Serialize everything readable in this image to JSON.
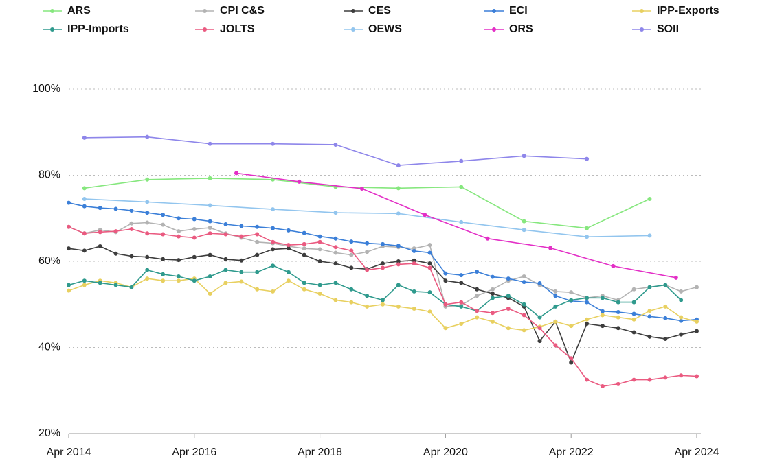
{
  "chart_data": {
    "type": "line",
    "legend": "top",
    "grid": true,
    "xlim": [
      2014.25,
      2024.25
    ],
    "xticks": [
      {
        "value": 2014.25,
        "label": "Apr 2014"
      },
      {
        "value": 2016.25,
        "label": "Apr 2016"
      },
      {
        "value": 2018.25,
        "label": "Apr 2018"
      },
      {
        "value": 2020.25,
        "label": "Apr 2020"
      },
      {
        "value": 2022.25,
        "label": "Apr 2022"
      },
      {
        "value": 2024.25,
        "label": "Apr 2024"
      }
    ],
    "ylim": [
      20,
      100
    ],
    "yticks": [
      {
        "value": 20,
        "label": "20%"
      },
      {
        "value": 40,
        "label": "40%"
      },
      {
        "value": 60,
        "label": "60%"
      },
      {
        "value": 80,
        "label": "80%"
      },
      {
        "value": 100,
        "label": "100%"
      }
    ],
    "series": [
      {
        "name": "ARS",
        "color": "#86e77e",
        "x": [
          2014.5,
          2015.5,
          2016.5,
          2017.5,
          2018.5,
          2019.5,
          2020.5,
          2021.5,
          2022.5,
          2023.5
        ],
        "values": [
          77,
          79,
          79.3,
          79,
          77.3,
          77,
          77.3,
          69.3,
          67.7,
          74.5
        ]
      },
      {
        "name": "CPI C&S",
        "color": "#b3b3b3",
        "x": [
          2014.25,
          2014.5,
          2014.75,
          2015,
          2015.25,
          2015.5,
          2015.75,
          2016,
          2016.25,
          2016.5,
          2016.75,
          2017,
          2017.25,
          2017.5,
          2017.75,
          2018,
          2018.25,
          2018.5,
          2018.75,
          2019,
          2019.25,
          2019.5,
          2019.75,
          2020,
          2020.25,
          2020.5,
          2020.75,
          2021,
          2021.25,
          2021.5,
          2021.75,
          2022,
          2022.25,
          2022.5,
          2022.75,
          2023,
          2023.25,
          2023.5,
          2023.75,
          2024,
          2024.25
        ],
        "values": [
          68.0,
          66.5,
          67.3,
          66.8,
          68.8,
          69.0,
          68.5,
          67.0,
          67.5,
          67.8,
          66.5,
          65.5,
          64.5,
          64.2,
          63.5,
          63.0,
          62.8,
          62.0,
          61.5,
          62.2,
          63.5,
          63.3,
          63.0,
          63.8,
          49.5,
          49.8,
          52.0,
          53.5,
          55.5,
          56.5,
          54.5,
          53.0,
          52.8,
          51.5,
          52.0,
          51.0,
          53.5,
          54.0,
          54.5,
          53.0,
          54.0
        ]
      },
      {
        "name": "CES",
        "color": "#3d3d3d",
        "x": [
          2014.25,
          2014.5,
          2014.75,
          2015,
          2015.25,
          2015.5,
          2015.75,
          2016,
          2016.25,
          2016.5,
          2016.75,
          2017,
          2017.25,
          2017.5,
          2017.75,
          2018,
          2018.25,
          2018.5,
          2018.75,
          2019,
          2019.25,
          2019.5,
          2019.75,
          2020,
          2020.25,
          2020.5,
          2020.75,
          2021,
          2021.25,
          2021.5,
          2021.75,
          2022,
          2022.25,
          2022.5,
          2022.75,
          2023,
          2023.25,
          2023.5,
          2023.75,
          2024,
          2024.25
        ],
        "values": [
          63.0,
          62.5,
          63.5,
          61.8,
          61.2,
          61.0,
          60.5,
          60.3,
          61.0,
          61.5,
          60.5,
          60.2,
          61.5,
          62.8,
          63.0,
          61.5,
          60.0,
          59.5,
          58.5,
          58.2,
          59.5,
          60.0,
          60.2,
          59.5,
          55.5,
          55.0,
          53.5,
          52.5,
          51.5,
          49.5,
          41.5,
          46.0,
          36.5,
          45.5,
          45.0,
          44.5,
          43.5,
          42.5,
          42.0,
          43.0,
          43.8
        ]
      },
      {
        "name": "ECI",
        "color": "#3b7fd8",
        "x": [
          2014.25,
          2014.5,
          2014.75,
          2015,
          2015.25,
          2015.5,
          2015.75,
          2016,
          2016.25,
          2016.5,
          2016.75,
          2017,
          2017.25,
          2017.5,
          2017.75,
          2018,
          2018.25,
          2018.5,
          2018.75,
          2019,
          2019.25,
          2019.5,
          2019.75,
          2020,
          2020.25,
          2020.5,
          2020.75,
          2021,
          2021.25,
          2021.5,
          2021.75,
          2022,
          2022.25,
          2022.5,
          2022.75,
          2023,
          2023.25,
          2023.5,
          2023.75,
          2024,
          2024.25
        ],
        "values": [
          73.6,
          72.8,
          72.4,
          72.2,
          71.8,
          71.3,
          70.8,
          70.0,
          69.8,
          69.3,
          68.6,
          68.2,
          68.0,
          67.7,
          67.2,
          66.6,
          65.8,
          65.3,
          64.6,
          64.2,
          64.0,
          63.6,
          62.4,
          62.0,
          57.2,
          56.8,
          57.6,
          56.4,
          56.0,
          55.2,
          54.9,
          52.0,
          50.8,
          50.5,
          48.4,
          48.2,
          47.8,
          47.2,
          46.8,
          46.2,
          46.5
        ]
      },
      {
        "name": "IPP-Exports",
        "color": "#e8d060",
        "x": [
          2014.25,
          2014.5,
          2014.75,
          2015,
          2015.25,
          2015.5,
          2015.75,
          2016,
          2016.25,
          2016.5,
          2016.75,
          2017,
          2017.25,
          2017.5,
          2017.75,
          2018,
          2018.25,
          2018.5,
          2018.75,
          2019,
          2019.25,
          2019.5,
          2019.75,
          2020,
          2020.25,
          2020.5,
          2020.75,
          2021,
          2021.25,
          2021.5,
          2021.75,
          2022,
          2022.25,
          2022.5,
          2022.75,
          2023,
          2023.25,
          2023.5,
          2023.75,
          2024,
          2024.25
        ],
        "values": [
          53.2,
          54.5,
          55.5,
          55.0,
          54.0,
          56.0,
          55.5,
          55.5,
          56.0,
          52.5,
          55.0,
          55.3,
          53.5,
          53.0,
          55.5,
          53.5,
          52.5,
          51.0,
          50.5,
          49.5,
          50.0,
          49.5,
          49.0,
          48.3,
          44.5,
          45.5,
          47.0,
          46.0,
          44.5,
          44.0,
          44.8,
          46.0,
          45.0,
          46.5,
          47.5,
          47.0,
          46.5,
          48.5,
          49.5,
          47.0,
          46.0
        ]
      },
      {
        "name": "IPP-Imports",
        "color": "#2f9a8d",
        "x": [
          2014.25,
          2014.5,
          2014.75,
          2015,
          2015.25,
          2015.5,
          2015.75,
          2016,
          2016.25,
          2016.5,
          2016.75,
          2017,
          2017.25,
          2017.5,
          2017.75,
          2018,
          2018.25,
          2018.5,
          2018.75,
          2019,
          2019.25,
          2019.5,
          2019.75,
          2020,
          2020.25,
          2020.5,
          2020.75,
          2021,
          2021.25,
          2021.5,
          2021.75,
          2022,
          2022.25,
          2022.5,
          2022.75,
          2023,
          2023.25,
          2023.5,
          2023.75,
          2024
        ],
        "values": [
          54.5,
          55.5,
          55.0,
          54.5,
          54.0,
          58.0,
          57.0,
          56.5,
          55.5,
          56.5,
          58.0,
          57.5,
          57.5,
          59.0,
          57.5,
          55.0,
          54.5,
          55.0,
          53.5,
          52.0,
          51.0,
          54.5,
          53.0,
          52.8,
          50.0,
          49.5,
          48.5,
          51.5,
          52.0,
          50.0,
          47.0,
          49.5,
          51.0,
          51.5,
          51.5,
          50.5,
          50.5,
          54.0,
          54.5,
          51.0
        ]
      },
      {
        "name": "JOLTS",
        "color": "#ea5a80",
        "x": [
          2014.25,
          2014.5,
          2014.75,
          2015,
          2015.25,
          2015.5,
          2015.75,
          2016,
          2016.25,
          2016.5,
          2016.75,
          2017,
          2017.25,
          2017.5,
          2017.75,
          2018,
          2018.25,
          2018.5,
          2018.75,
          2019,
          2019.25,
          2019.5,
          2019.75,
          2020,
          2020.25,
          2020.5,
          2020.75,
          2021,
          2021.25,
          2021.5,
          2021.75,
          2022,
          2022.25,
          2022.5,
          2022.75,
          2023,
          2023.25,
          2023.5,
          2023.75,
          2024,
          2024.25
        ],
        "values": [
          68.0,
          66.5,
          66.8,
          67.0,
          67.5,
          66.5,
          66.3,
          65.8,
          65.5,
          66.5,
          66.3,
          65.8,
          66.3,
          64.5,
          63.8,
          64.0,
          64.5,
          63.3,
          62.5,
          58.0,
          58.5,
          59.3,
          59.5,
          58.5,
          50.0,
          50.5,
          48.5,
          48.0,
          49.0,
          47.5,
          44.5,
          40.5,
          37.5,
          32.5,
          31.0,
          31.5,
          32.5,
          32.5,
          33.0,
          33.5,
          33.3
        ]
      },
      {
        "name": "OEWS",
        "color": "#92c5ee",
        "x": [
          2014.5,
          2015.5,
          2016.5,
          2017.5,
          2018.5,
          2019.5,
          2020.5,
          2021.5,
          2022.5,
          2023.5
        ],
        "values": [
          74.5,
          73.8,
          73,
          72.1,
          71.3,
          71.1,
          69.1,
          67.3,
          65.7,
          66
        ]
      },
      {
        "name": "ORS",
        "color": "#e32fc6",
        "x": [
          2016.92,
          2017.92,
          2018.92,
          2019.92,
          2020.92,
          2021.92,
          2022.92,
          2023.92
        ],
        "values": [
          80.5,
          78.5,
          76.9,
          70.8,
          65.3,
          63.1,
          58.9,
          56.2
        ]
      },
      {
        "name": "SOII",
        "color": "#8e86ea",
        "x": [
          2014.5,
          2015.5,
          2016.5,
          2017.5,
          2018.5,
          2019.5,
          2020.5,
          2021.5,
          2022.5
        ],
        "values": [
          88.7,
          88.9,
          87.3,
          87.3,
          87.1,
          82.3,
          83.3,
          84.5,
          83.8
        ]
      }
    ]
  }
}
